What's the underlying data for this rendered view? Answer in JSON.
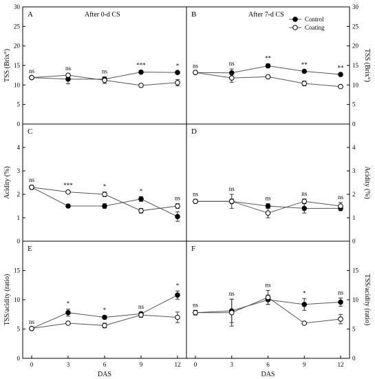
{
  "chart_data": {
    "type": "line",
    "x": [
      0,
      3,
      6,
      9,
      12
    ],
    "xlabel": "DAS",
    "legend": {
      "position": "top-right of panel B",
      "entries": [
        {
          "name": "Control",
          "marker": "filled-circle"
        },
        {
          "name": "Coating",
          "marker": "open-circle"
        }
      ]
    },
    "rows": [
      {
        "ylabel": "TSS (Brix°)",
        "ylim": [
          0,
          30
        ],
        "yticks": [
          0,
          5,
          10,
          15,
          20,
          25,
          30
        ]
      },
      {
        "ylabel": "Acidity (%)",
        "ylim": [
          0,
          5
        ],
        "yticks": [
          0,
          1,
          2,
          3,
          4,
          5
        ]
      },
      {
        "ylabel": "TSS/acidity (ratio)",
        "ylim": [
          0,
          20
        ],
        "yticks": [
          0,
          5,
          10,
          15,
          20
        ]
      }
    ],
    "panels": [
      {
        "letter": "A",
        "row": 0,
        "col": 0,
        "title": "After 0-d CS",
        "series": [
          {
            "name": "Control",
            "values": [
              11.9,
              11.5,
              11.5,
              13.3,
              13.2
            ],
            "errors": [
              0.3,
              1.2,
              0.6,
              0.4,
              0.3
            ]
          },
          {
            "name": "Coating",
            "values": [
              11.9,
              12.5,
              11.2,
              9.9,
              10.6
            ],
            "errors": [
              0.3,
              0.4,
              0.8,
              0.4,
              0.8
            ]
          }
        ],
        "significance": [
          "ns",
          "ns",
          "ns",
          "***",
          "*"
        ]
      },
      {
        "letter": "B",
        "row": 0,
        "col": 1,
        "title": "After 7-d CS",
        "series": [
          {
            "name": "Control",
            "values": [
              13.2,
              13.1,
              14.9,
              13.5,
              12.7
            ],
            "errors": [
              0.3,
              1.0,
              0.5,
              0.3,
              0.3
            ]
          },
          {
            "name": "Coating",
            "values": [
              13.2,
              11.8,
              12.1,
              10.4,
              9.6
            ],
            "errors": [
              0.3,
              1.1,
              0.3,
              0.6,
              0.3
            ]
          }
        ],
        "significance": [
          "ns",
          "ns",
          "**",
          "**",
          "**"
        ]
      },
      {
        "letter": "C",
        "row": 1,
        "col": 0,
        "title": "",
        "series": [
          {
            "name": "Control",
            "values": [
              2.3,
              1.5,
              1.5,
              1.8,
              1.05
            ],
            "errors": [
              0.08,
              0.05,
              0.1,
              0.1,
              0.2
            ]
          },
          {
            "name": "Coating",
            "values": [
              2.3,
              2.1,
              2.0,
              1.3,
              1.5
            ],
            "errors": [
              0.08,
              0.05,
              0.1,
              0.1,
              0.1
            ]
          }
        ],
        "significance": [
          "ns",
          "***",
          "*",
          "*",
          "ns"
        ]
      },
      {
        "letter": "D",
        "row": 1,
        "col": 1,
        "title": "",
        "series": [
          {
            "name": "Control",
            "values": [
              1.7,
              1.7,
              1.5,
              1.4,
              1.4
            ],
            "errors": [
              0.08,
              0.3,
              0.1,
              0.2,
              0.1
            ]
          },
          {
            "name": "Coating",
            "values": [
              1.7,
              1.7,
              1.2,
              1.7,
              1.5
            ],
            "errors": [
              0.08,
              0.1,
              0.2,
              0.1,
              0.15
            ]
          }
        ],
        "significance": [
          "ns",
          "ns",
          "ns",
          "ns",
          "ns"
        ]
      },
      {
        "letter": "E",
        "row": 2,
        "col": 0,
        "title": "",
        "series": [
          {
            "name": "Control",
            "values": [
              5.1,
              7.8,
              7.0,
              7.6,
              10.8
            ],
            "errors": [
              0.2,
              0.6,
              0.3,
              0.3,
              0.7
            ]
          },
          {
            "name": "Coating",
            "values": [
              5.1,
              6.0,
              5.6,
              7.4,
              7.0
            ],
            "errors": [
              0.2,
              0.2,
              0.4,
              0.4,
              0.9
            ]
          }
        ],
        "significance": [
          "ns",
          "*",
          "*",
          "ns",
          "*"
        ]
      },
      {
        "letter": "F",
        "row": 2,
        "col": 1,
        "title": "",
        "series": [
          {
            "name": "Control",
            "values": [
              7.8,
              8.1,
              10.0,
              9.2,
              9.6
            ],
            "errors": [
              0.4,
              2.0,
              0.8,
              1.0,
              0.7
            ]
          },
          {
            "name": "Coating",
            "values": [
              7.8,
              7.8,
              10.4,
              6.0,
              6.7
            ],
            "errors": [
              0.4,
              2.3,
              1.2,
              0.2,
              0.8
            ]
          }
        ],
        "significance": [
          "ns",
          "ns",
          "ns",
          "*",
          "ns"
        ]
      }
    ]
  }
}
